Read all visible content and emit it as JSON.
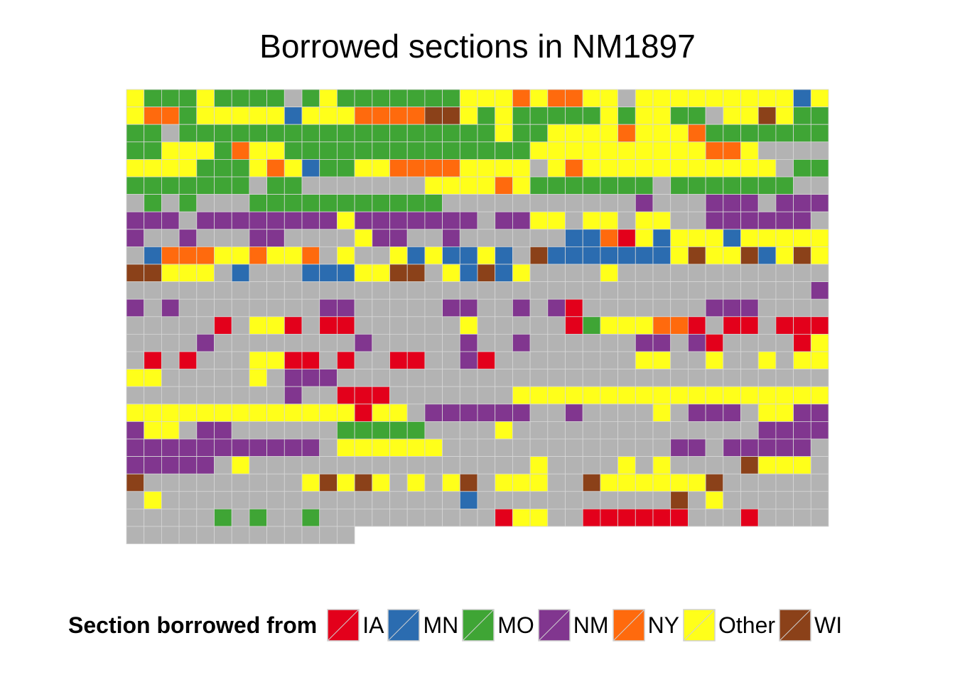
{
  "chart_data": {
    "type": "heatmap",
    "title": "Borrowed sections in NM1897",
    "legend": {
      "title": "Section borrowed from",
      "position": "bottom",
      "items": [
        {
          "label": "IA",
          "code": "I",
          "color": "#E3001B"
        },
        {
          "label": "MN",
          "code": "M",
          "color": "#2B6CB0"
        },
        {
          "label": "MO",
          "code": "G",
          "color": "#3FA535"
        },
        {
          "label": "NM",
          "code": "P",
          "color": "#81368F"
        },
        {
          "label": "NY",
          "code": "N",
          "color": "#FF6A0D"
        },
        {
          "label": "Other",
          "code": "Y",
          "color": "#FFFF1A"
        },
        {
          "label": "WI",
          "code": "W",
          "color": "#8B4119"
        }
      ]
    },
    "no_borrow_color": "#B3B3B3",
    "columns": 40,
    "cell_codes_note": "one string per row; each character is one section, left to right",
    "rows": [
      "YGGGYGGGGSGYGGGGGGGYYYNYNNYYSYYYYYYYYYMY",
      "YNNGYYYYYMYYYNNNNWWYGYGGGGGYGYYGGSYYWYGG",
      "GGSGGGGGGGGGGGGGGGGGGYGGYYYYNYYYNGGGGGGG",
      "GGYYYGNYYGGGGGGGGGGGGGGYYYYYYYYYYNNYSSSS",
      "YYYYGGGYNYMGGYYNNNNYYYYSYNYYYYYYYYYYYSGG",
      "GGGGGGGSGGSSSSSSSYYYYNYGGGGGGGSGGGGGGGSS",
      "SGSGSSSGGGGGGGGGGGSSSSSSSSSSSPSSSPPPSPPP",
      "PPPSPPPPPPPPYPPPPPPPSPPYYSYYSYYSSPPPPPPS",
      "PSSPSSSPPSSSSYPPSSPSSSSSSMMNIYMYYYMYYYYY",
      "SMNNNYYNYYNSYSSYMYMMYMSWMMMMMMMYWYYWMYWY",
      "WWYYYSMSSSMMMYYWWSYMWMYSSSSYSSSSSSSSSSSS",
      "SSSSSSSSSSSSSSSSSSSSSSSSSSSSSSSSSSSSSSSP",
      "PSPSSSSSSSSPPSSSSSPPSSPSPISSSSSSSPPPSSSS",
      "SSSSSISYYISIISSSSSSYSSSSSIGYYYNNISIISIII",
      "SSSSPSSSSSSSSPSSSSSPSSPSSSSSSPPSPISSSSIY",
      "SISISSSYYIISISSIISSPISSSSSSSSYYSSYSSYSYY",
      "YYSSSSSYSPPPSSSSSSSSSSSSSSSSSSSSSSSSSSSS",
      "SSSSSSSSSPSSIIISSSSSSSYYYYYYYYYYYYYYYYYY",
      "YYYYYYYYYYYYYIYYSPPPPPPSSPSSSSYSPPPSYYPP",
      "PYYSPPSSSSSSGGGGGSSSSYSSSSSSSSSSSSSSPPPP",
      "PPPPPPPPPPPSYYYYYYSSSSSSSSSSSSSPPSPPPPPS",
      "PPPPPSYSSSSSSSSSSSSSSSSYSSSSYSYSSSSWYYYS",
      "WSSSSSSSSSYWYWYSYSYWSYYYSSWYYYYYYWSSSSSS",
      "SYSSSSSSSSSSSSSSSSSMSSSSSSSSSSSWSYSSSSSS",
      "SSSSSGSGSSGSSSSSSSSSSIYYSSIIIIIISSSISSSS",
      "SSSSSSSSSSSSS"
    ]
  }
}
